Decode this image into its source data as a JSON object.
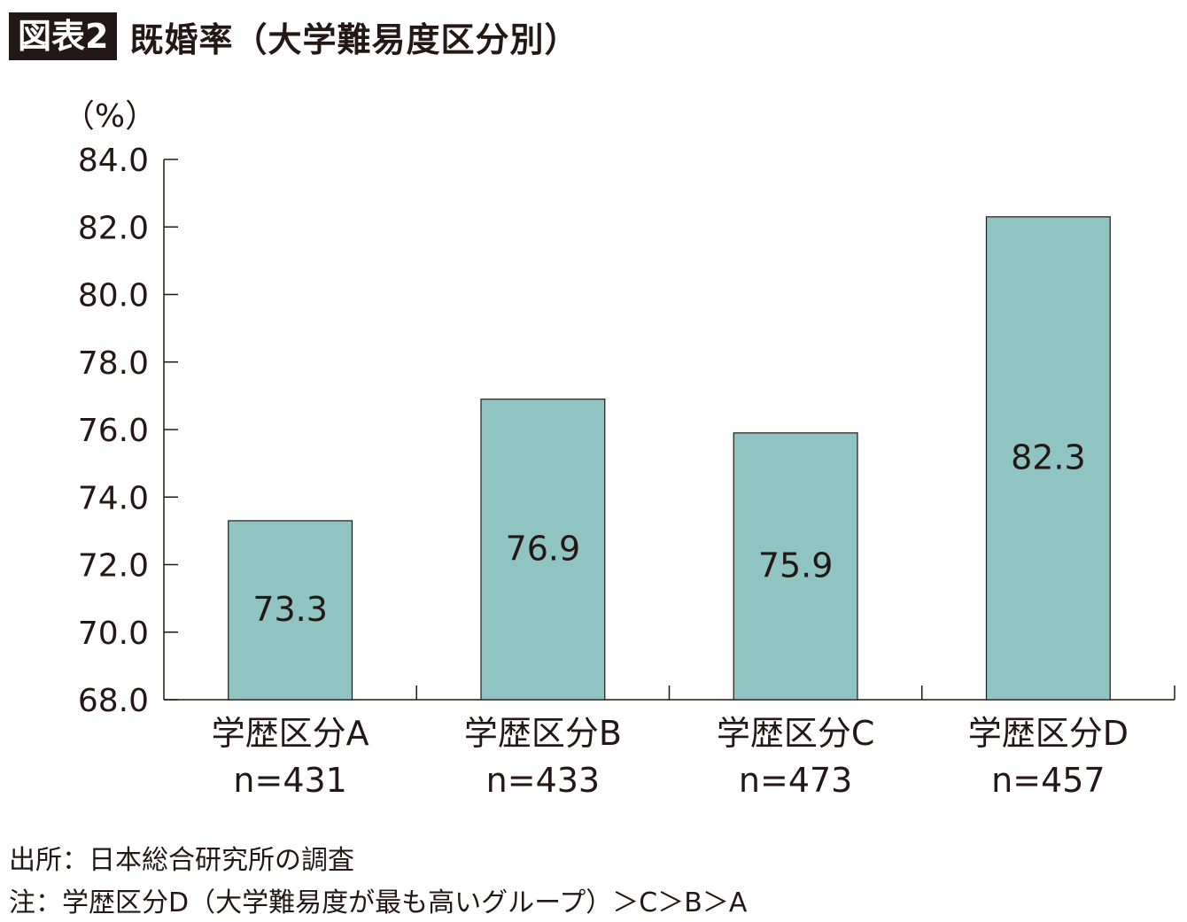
{
  "header": {
    "badge": "図表2",
    "title": "既婚率（大学難易度区分別）"
  },
  "chart_data": {
    "type": "bar",
    "title": "既婚率（大学難易度区分別）",
    "ylabel": "（%）",
    "xlabel": "",
    "ylim": [
      68.0,
      84.0
    ],
    "yticks": [
      "68.0",
      "70.0",
      "72.0",
      "74.0",
      "76.0",
      "78.0",
      "80.0",
      "82.0",
      "84.0"
    ],
    "categories": [
      "学歴区分A",
      "学歴区分B",
      "学歴区分C",
      "学歴区分D"
    ],
    "sample_sizes": [
      "n=431",
      "n=433",
      "n=473",
      "n=457"
    ],
    "values": [
      73.3,
      76.9,
      75.9,
      82.3
    ],
    "data_labels": [
      "73.3",
      "76.9",
      "75.9",
      "82.3"
    ],
    "bar_color": "#8fc4c2",
    "grid": false,
    "legend": "none"
  },
  "footer": {
    "source": "出所：日本総合研究所の調査",
    "note": "注：学歴区分D（大学難易度が最も高いグループ）＞C＞B＞A"
  }
}
